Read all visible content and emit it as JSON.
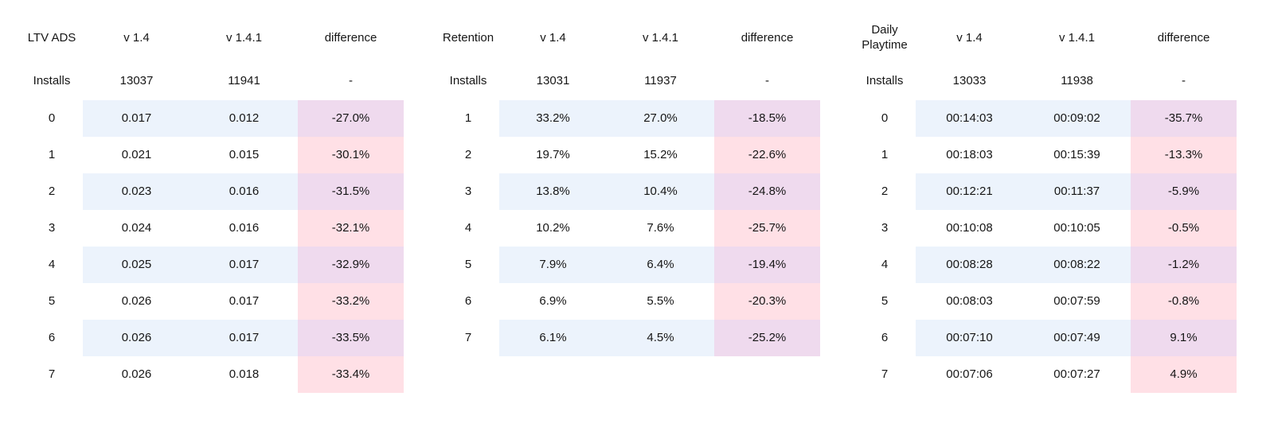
{
  "colors": {
    "background": "#ffffff",
    "value_row_blue": "#ecf3fc",
    "diff_mauve": "#efdaee",
    "diff_pink": "#ffe0e6",
    "text": "#161616"
  },
  "chart_data": [
    {
      "type": "table",
      "title": "LTV ADS",
      "columns": [
        "v 1.4",
        "v 1.4.1",
        "difference"
      ],
      "installs": {
        "label": "Installs",
        "v14": "13037",
        "v141": "11941",
        "diff": "-"
      },
      "rows": [
        {
          "day": "0",
          "v14": "0.017",
          "v141": "0.012",
          "diff": "-27.0%"
        },
        {
          "day": "1",
          "v14": "0.021",
          "v141": "0.015",
          "diff": "-30.1%"
        },
        {
          "day": "2",
          "v14": "0.023",
          "v141": "0.016",
          "diff": "-31.5%"
        },
        {
          "day": "3",
          "v14": "0.024",
          "v141": "0.016",
          "diff": "-32.1%"
        },
        {
          "day": "4",
          "v14": "0.025",
          "v141": "0.017",
          "diff": "-32.9%"
        },
        {
          "day": "5",
          "v14": "0.026",
          "v141": "0.017",
          "diff": "-33.2%"
        },
        {
          "day": "6",
          "v14": "0.026",
          "v141": "0.017",
          "diff": "-33.5%"
        },
        {
          "day": "7",
          "v14": "0.026",
          "v141": "0.018",
          "diff": "-33.4%"
        }
      ]
    },
    {
      "type": "table",
      "title": "Retention",
      "columns": [
        "v 1.4",
        "v 1.4.1",
        "difference"
      ],
      "installs": {
        "label": "Installs",
        "v14": "13031",
        "v141": "11937",
        "diff": "-"
      },
      "rows": [
        {
          "day": "1",
          "v14": "33.2%",
          "v141": "27.0%",
          "diff": "-18.5%"
        },
        {
          "day": "2",
          "v14": "19.7%",
          "v141": "15.2%",
          "diff": "-22.6%"
        },
        {
          "day": "3",
          "v14": "13.8%",
          "v141": "10.4%",
          "diff": "-24.8%"
        },
        {
          "day": "4",
          "v14": "10.2%",
          "v141": "7.6%",
          "diff": "-25.7%"
        },
        {
          "day": "5",
          "v14": "7.9%",
          "v141": "6.4%",
          "diff": "-19.4%"
        },
        {
          "day": "6",
          "v14": "6.9%",
          "v141": "5.5%",
          "diff": "-20.3%"
        },
        {
          "day": "7",
          "v14": "6.1%",
          "v141": "4.5%",
          "diff": "-25.2%"
        }
      ]
    },
    {
      "type": "table",
      "title": "Daily Playtime",
      "columns": [
        "v 1.4",
        "v 1.4.1",
        "difference"
      ],
      "installs": {
        "label": "Installs",
        "v14": "13033",
        "v141": "11938",
        "diff": "-"
      },
      "rows": [
        {
          "day": "0",
          "v14": "00:14:03",
          "v141": "00:09:02",
          "diff": "-35.7%"
        },
        {
          "day": "1",
          "v14": "00:18:03",
          "v141": "00:15:39",
          "diff": "-13.3%"
        },
        {
          "day": "2",
          "v14": "00:12:21",
          "v141": "00:11:37",
          "diff": "-5.9%"
        },
        {
          "day": "3",
          "v14": "00:10:08",
          "v141": "00:10:05",
          "diff": "-0.5%"
        },
        {
          "day": "4",
          "v14": "00:08:28",
          "v141": "00:08:22",
          "diff": "-1.2%"
        },
        {
          "day": "5",
          "v14": "00:08:03",
          "v141": "00:07:59",
          "diff": "-0.8%"
        },
        {
          "day": "6",
          "v14": "00:07:10",
          "v141": "00:07:49",
          "diff": "9.1%"
        },
        {
          "day": "7",
          "v14": "00:07:06",
          "v141": "00:07:27",
          "diff": "4.9%"
        }
      ]
    }
  ]
}
